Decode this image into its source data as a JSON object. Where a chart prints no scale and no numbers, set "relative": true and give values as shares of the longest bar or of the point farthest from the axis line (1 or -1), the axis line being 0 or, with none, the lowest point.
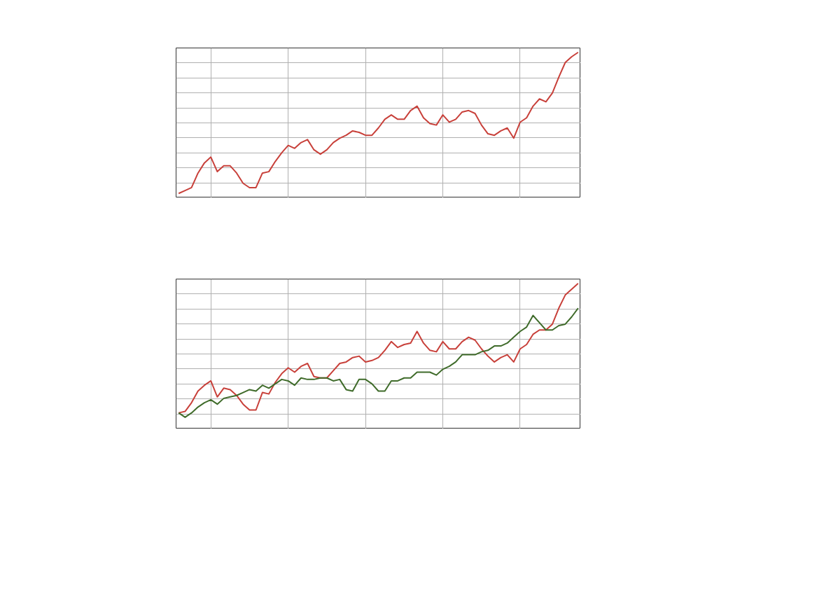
{
  "chart_data": [
    {
      "type": "line",
      "relative": true,
      "grid": true,
      "marker": "none",
      "line_style": "solid",
      "categories": [
        null,
        null,
        null,
        null,
        null,
        null,
        null,
        null,
        null,
        null,
        null,
        null,
        null,
        null,
        null,
        null,
        null,
        null,
        null,
        null,
        null,
        null,
        null,
        null,
        null,
        null,
        null,
        null,
        null,
        null,
        null,
        null,
        null,
        null,
        null,
        null,
        null,
        null,
        null,
        null,
        null,
        null,
        null,
        null,
        null,
        null,
        null,
        null,
        null,
        null,
        null,
        null,
        null,
        null,
        null,
        null,
        null,
        null,
        null,
        null,
        null,
        null,
        null
      ],
      "series": [
        {
          "color": "#c8403a",
          "values": [
            0.03,
            0.05,
            0.07,
            0.17,
            0.24,
            0.28,
            0.18,
            0.22,
            0.22,
            0.17,
            0.1,
            0.07,
            0.07,
            0.17,
            0.18,
            0.25,
            0.31,
            0.36,
            0.34,
            0.38,
            0.4,
            0.33,
            0.3,
            0.33,
            0.38,
            0.41,
            0.43,
            0.46,
            0.45,
            0.43,
            0.43,
            0.48,
            0.54,
            0.57,
            0.54,
            0.54,
            0.6,
            0.63,
            0.55,
            0.51,
            0.5,
            0.57,
            0.52,
            0.54,
            0.59,
            0.6,
            0.58,
            0.5,
            0.44,
            0.43,
            0.46,
            0.48,
            0.41,
            0.52,
            0.55,
            0.63,
            0.68,
            0.66,
            0.72,
            0.83,
            0.93,
            0.97,
            1.0
          ]
        }
      ]
    },
    {
      "type": "line",
      "relative": true,
      "grid": true,
      "marker": "none",
      "line_style": "solid",
      "categories": [
        null,
        null,
        null,
        null,
        null,
        null,
        null,
        null,
        null,
        null,
        null,
        null,
        null,
        null,
        null,
        null,
        null,
        null,
        null,
        null,
        null,
        null,
        null,
        null,
        null,
        null,
        null,
        null,
        null,
        null,
        null,
        null,
        null,
        null,
        null,
        null,
        null,
        null,
        null,
        null,
        null,
        null,
        null,
        null,
        null,
        null,
        null,
        null,
        null,
        null,
        null,
        null,
        null,
        null,
        null,
        null,
        null,
        null,
        null,
        null,
        null,
        null,
        null
      ],
      "series": [
        {
          "color": "#c8403a",
          "values": [
            0.11,
            0.12,
            0.18,
            0.26,
            0.3,
            0.33,
            0.22,
            0.28,
            0.27,
            0.23,
            0.17,
            0.13,
            0.13,
            0.25,
            0.24,
            0.32,
            0.38,
            0.42,
            0.39,
            0.43,
            0.45,
            0.36,
            0.35,
            0.35,
            0.4,
            0.45,
            0.46,
            0.49,
            0.5,
            0.46,
            0.47,
            0.49,
            0.54,
            0.6,
            0.56,
            0.58,
            0.59,
            0.67,
            0.59,
            0.54,
            0.53,
            0.6,
            0.55,
            0.55,
            0.6,
            0.63,
            0.61,
            0.55,
            0.5,
            0.46,
            0.49,
            0.51,
            0.46,
            0.55,
            0.58,
            0.65,
            0.68,
            0.68,
            0.72,
            0.83,
            0.92,
            0.96,
            1.0
          ]
        },
        {
          "color": "#3f6b2a",
          "values": [
            0.11,
            0.08,
            0.11,
            0.15,
            0.18,
            0.2,
            0.17,
            0.21,
            0.22,
            0.23,
            0.25,
            0.27,
            0.26,
            0.3,
            0.28,
            0.31,
            0.34,
            0.33,
            0.3,
            0.35,
            0.34,
            0.34,
            0.35,
            0.35,
            0.33,
            0.34,
            0.27,
            0.26,
            0.34,
            0.34,
            0.31,
            0.26,
            0.26,
            0.33,
            0.33,
            0.35,
            0.35,
            0.39,
            0.39,
            0.39,
            0.37,
            0.41,
            0.43,
            0.46,
            0.51,
            0.51,
            0.51,
            0.53,
            0.54,
            0.57,
            0.57,
            0.59,
            0.63,
            0.67,
            0.7,
            0.78,
            0.73,
            0.68,
            0.68,
            0.71,
            0.72,
            0.77,
            0.83
          ]
        }
      ]
    }
  ]
}
